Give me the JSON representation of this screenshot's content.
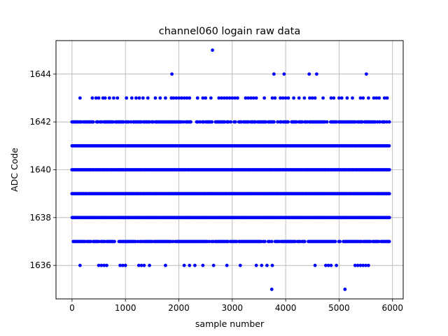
{
  "chart_data": {
    "type": "scatter",
    "title": "channel060 logain raw data",
    "xlabel": "sample number",
    "ylabel": "ADC Code",
    "xlim": [
      -300,
      6200
    ],
    "ylim": [
      1634.6,
      1645.4
    ],
    "xticks": [
      0,
      1000,
      2000,
      3000,
      4000,
      5000,
      6000
    ],
    "xtick_labels": [
      "0",
      "1000",
      "2000",
      "3000",
      "4000",
      "5000",
      "6000"
    ],
    "yticks": [
      1636,
      1638,
      1640,
      1642,
      1644
    ],
    "ytick_labels": [
      "1636",
      "1638",
      "1640",
      "1642",
      "1644"
    ],
    "grid": true,
    "marker_color": "#0000ff",
    "series": [
      {
        "dense_levels": [
          1637,
          1638,
          1639,
          1640,
          1641,
          1642
        ],
        "dense_x_range": [
          0,
          5950
        ],
        "sparse_points": {
          "1643": [
            150,
            380,
            450,
            500,
            580,
            620,
            700,
            780,
            850,
            1020,
            1120,
            1200,
            1260,
            1330,
            1420,
            1560,
            1650,
            1750,
            1860,
            1900,
            1950,
            2000,
            2050,
            2100,
            2150,
            2200,
            2350,
            2450,
            2500,
            2600,
            2750,
            2800,
            2850,
            2900,
            2950,
            3000,
            3050,
            3100,
            3250,
            3300,
            3350,
            3400,
            3450,
            3600,
            3750,
            3800,
            3900,
            3950,
            4000,
            4050,
            4150,
            4250,
            4350,
            4450,
            4500,
            4550,
            4700,
            4850,
            4900,
            5000,
            5050,
            5150,
            5250,
            5400,
            5450,
            5550,
            5650,
            5700,
            5750,
            5850,
            5900
          ],
          "1636": [
            150,
            500,
            550,
            600,
            650,
            900,
            950,
            1000,
            1250,
            1300,
            1350,
            1450,
            1750,
            2100,
            2200,
            2300,
            2450,
            2650,
            2900,
            3150,
            3450,
            3550,
            3650,
            3750,
            4550,
            4750,
            4800,
            4850,
            4950,
            5300,
            5350,
            5400,
            5450,
            5500,
            5550
          ],
          "1644": [
            1870,
            3780,
            3970,
            4440,
            4580,
            5510
          ],
          "1645": [
            2630
          ],
          "1635": [
            3740,
            5110
          ]
        }
      }
    ]
  }
}
